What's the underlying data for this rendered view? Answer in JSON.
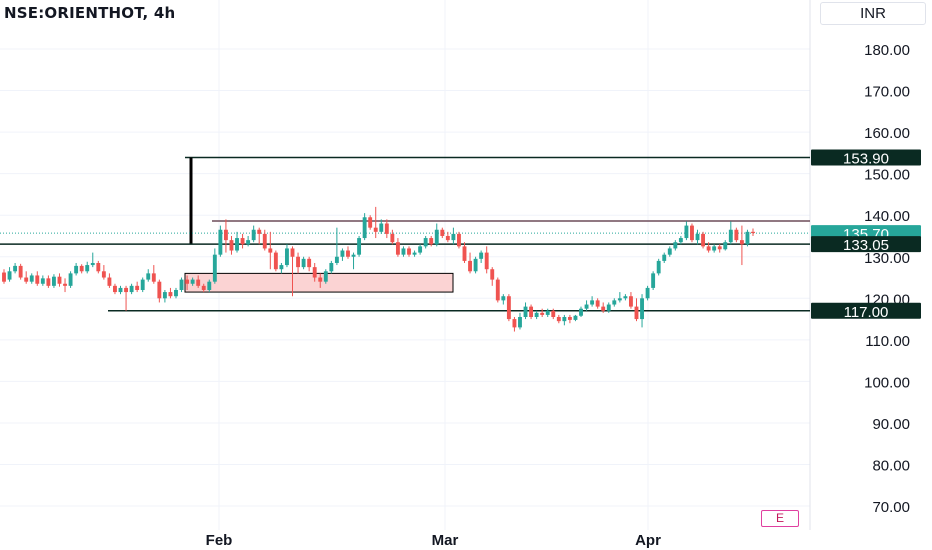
{
  "header": {
    "symbol": "NSE:ORIENTHOT, 4h",
    "currency": "INR"
  },
  "e_button": "E",
  "colors": {
    "up": "#26a69a",
    "down": "#ef5350",
    "level": "#0a2a22",
    "last": "#26a69a",
    "box_fill": "#fbd3d3"
  },
  "chart_data": {
    "type": "candlestick",
    "ylim": [
      65,
      190
    ],
    "y_ticks": [
      "180.00",
      "170.00",
      "160.00",
      "150.00",
      "140.00",
      "130.00",
      "120.00",
      "110.00",
      "100.00",
      "90.00",
      "80.00",
      "70.00"
    ],
    "x_labels": [
      "Feb",
      "Mar",
      "Apr"
    ],
    "levels": [
      {
        "label": "153.90",
        "value": 153.9
      },
      {
        "label": "133.05",
        "value": 133.05
      },
      {
        "label": "117.00",
        "value": 117.0
      }
    ],
    "resistance": {
      "value": 138.6
    },
    "last_price": {
      "label": "135.70",
      "value": 135.7
    },
    "series": [
      {
        "o": 126.2,
        "h": 127.0,
        "c": 124.0,
        "l": 123.5
      },
      {
        "o": 124.5,
        "h": 127.5,
        "c": 126.5,
        "l": 124.0
      },
      {
        "o": 126.5,
        "h": 128.5,
        "c": 127.8,
        "l": 126.0
      },
      {
        "o": 127.8,
        "h": 128.3,
        "c": 125.0,
        "l": 124.5
      },
      {
        "o": 125.0,
        "h": 126.5,
        "c": 124.0,
        "l": 123.5
      },
      {
        "o": 124.0,
        "h": 126.0,
        "c": 125.5,
        "l": 123.5
      },
      {
        "o": 125.5,
        "h": 126.5,
        "c": 123.5,
        "l": 123.0
      },
      {
        "o": 123.5,
        "h": 125.5,
        "c": 124.8,
        "l": 123.0
      },
      {
        "o": 124.8,
        "h": 125.5,
        "c": 123.0,
        "l": 122.5
      },
      {
        "o": 123.0,
        "h": 125.8,
        "c": 125.2,
        "l": 122.5
      },
      {
        "o": 125.2,
        "h": 126.0,
        "c": 123.5,
        "l": 122.8
      },
      {
        "o": 123.5,
        "h": 124.8,
        "c": 123.0,
        "l": 121.5
      },
      {
        "o": 123.0,
        "h": 126.5,
        "c": 126.0,
        "l": 122.5
      },
      {
        "o": 126.0,
        "h": 128.5,
        "c": 127.8,
        "l": 125.5
      },
      {
        "o": 127.8,
        "h": 128.2,
        "c": 126.5,
        "l": 126.0
      },
      {
        "o": 126.5,
        "h": 128.8,
        "c": 128.0,
        "l": 126.0
      },
      {
        "o": 128.0,
        "h": 131.0,
        "c": 128.5,
        "l": 127.5
      },
      {
        "o": 128.5,
        "h": 129.0,
        "c": 126.5,
        "l": 126.0
      },
      {
        "o": 126.5,
        "h": 128.0,
        "c": 125.0,
        "l": 124.5
      },
      {
        "o": 125.0,
        "h": 126.0,
        "c": 123.0,
        "l": 122.5
      },
      {
        "o": 123.0,
        "h": 123.5,
        "c": 121.5,
        "l": 121.0
      },
      {
        "o": 121.5,
        "h": 123.0,
        "c": 122.5,
        "l": 121.0
      },
      {
        "o": 122.5,
        "h": 123.0,
        "c": 121.5,
        "l": 117.0
      },
      {
        "o": 121.5,
        "h": 123.5,
        "c": 123.0,
        "l": 121.0
      },
      {
        "o": 123.0,
        "h": 124.0,
        "c": 122.0,
        "l": 121.5
      },
      {
        "o": 122.0,
        "h": 125.0,
        "c": 124.5,
        "l": 121.5
      },
      {
        "o": 124.5,
        "h": 127.0,
        "c": 126.0,
        "l": 124.0
      },
      {
        "o": 126.0,
        "h": 128.0,
        "c": 124.0,
        "l": 123.5
      },
      {
        "o": 124.0,
        "h": 124.5,
        "c": 120.0,
        "l": 119.0
      },
      {
        "o": 120.0,
        "h": 122.0,
        "c": 121.5,
        "l": 119.0
      },
      {
        "o": 121.5,
        "h": 122.5,
        "c": 120.5,
        "l": 120.0
      },
      {
        "o": 120.5,
        "h": 122.5,
        "c": 122.0,
        "l": 120.0
      },
      {
        "o": 122.0,
        "h": 125.0,
        "c": 124.5,
        "l": 121.5
      },
      {
        "o": 124.5,
        "h": 125.5,
        "c": 123.5,
        "l": 122.0
      },
      {
        "o": 123.5,
        "h": 125.0,
        "c": 124.5,
        "l": 123.0
      },
      {
        "o": 124.5,
        "h": 125.5,
        "c": 123.0,
        "l": 122.5
      },
      {
        "o": 123.0,
        "h": 123.5,
        "c": 122.0,
        "l": 121.5
      },
      {
        "o": 122.0,
        "h": 124.5,
        "c": 124.0,
        "l": 121.5
      },
      {
        "o": 124.0,
        "h": 132.0,
        "c": 130.5,
        "l": 123.5
      },
      {
        "o": 130.5,
        "h": 137.5,
        "c": 136.5,
        "l": 130.0
      },
      {
        "o": 136.5,
        "h": 139.0,
        "c": 134.0,
        "l": 131.0
      },
      {
        "o": 134.0,
        "h": 135.0,
        "c": 131.5,
        "l": 130.5
      },
      {
        "o": 131.5,
        "h": 136.0,
        "c": 134.5,
        "l": 131.0
      },
      {
        "o": 134.5,
        "h": 135.5,
        "c": 133.0,
        "l": 132.0
      },
      {
        "o": 133.0,
        "h": 135.0,
        "c": 134.0,
        "l": 132.5
      },
      {
        "o": 134.0,
        "h": 137.5,
        "c": 136.5,
        "l": 133.5
      },
      {
        "o": 136.5,
        "h": 137.0,
        "c": 135.5,
        "l": 133.0
      },
      {
        "o": 135.5,
        "h": 136.5,
        "c": 132.0,
        "l": 131.5
      },
      {
        "o": 132.0,
        "h": 136.0,
        "c": 131.0,
        "l": 127.0
      },
      {
        "o": 131.0,
        "h": 131.5,
        "c": 127.0,
        "l": 126.5
      },
      {
        "o": 127.0,
        "h": 128.5,
        "c": 128.0,
        "l": 126.0
      },
      {
        "o": 128.0,
        "h": 133.0,
        "c": 132.0,
        "l": 127.5
      },
      {
        "o": 132.0,
        "h": 132.5,
        "c": 130.0,
        "l": 120.5
      },
      {
        "o": 130.0,
        "h": 131.0,
        "c": 127.5,
        "l": 126.0
      },
      {
        "o": 127.5,
        "h": 130.0,
        "c": 129.5,
        "l": 127.0
      },
      {
        "o": 129.5,
        "h": 130.0,
        "c": 127.5,
        "l": 126.5
      },
      {
        "o": 127.5,
        "h": 128.5,
        "c": 125.0,
        "l": 124.0
      },
      {
        "o": 125.0,
        "h": 126.0,
        "c": 124.0,
        "l": 122.5
      },
      {
        "o": 124.0,
        "h": 127.0,
        "c": 126.5,
        "l": 123.5
      },
      {
        "o": 126.5,
        "h": 129.0,
        "c": 128.5,
        "l": 126.0
      },
      {
        "o": 128.5,
        "h": 137.0,
        "c": 130.0,
        "l": 128.0
      },
      {
        "o": 130.0,
        "h": 132.0,
        "c": 131.5,
        "l": 129.0
      },
      {
        "o": 131.5,
        "h": 132.5,
        "c": 130.0,
        "l": 129.5
      },
      {
        "o": 130.0,
        "h": 131.0,
        "c": 130.5,
        "l": 127.0
      },
      {
        "o": 130.5,
        "h": 135.0,
        "c": 134.5,
        "l": 130.0
      },
      {
        "o": 134.5,
        "h": 140.5,
        "c": 139.5,
        "l": 134.0
      },
      {
        "o": 139.5,
        "h": 140.0,
        "c": 137.0,
        "l": 136.5
      },
      {
        "o": 137.0,
        "h": 142.0,
        "c": 136.0,
        "l": 134.5
      },
      {
        "o": 136.0,
        "h": 139.0,
        "c": 138.0,
        "l": 135.5
      },
      {
        "o": 138.0,
        "h": 139.0,
        "c": 135.5,
        "l": 134.5
      },
      {
        "o": 135.5,
        "h": 136.5,
        "c": 133.5,
        "l": 133.0
      },
      {
        "o": 133.5,
        "h": 134.5,
        "c": 130.5,
        "l": 130.0
      },
      {
        "o": 130.5,
        "h": 132.5,
        "c": 132.0,
        "l": 130.0
      },
      {
        "o": 132.0,
        "h": 132.5,
        "c": 130.5,
        "l": 130.0
      },
      {
        "o": 130.5,
        "h": 131.5,
        "c": 131.0,
        "l": 130.0
      },
      {
        "o": 131.0,
        "h": 133.0,
        "c": 132.5,
        "l": 130.5
      },
      {
        "o": 132.5,
        "h": 135.0,
        "c": 134.5,
        "l": 132.0
      },
      {
        "o": 134.5,
        "h": 135.0,
        "c": 133.0,
        "l": 132.5
      },
      {
        "o": 133.0,
        "h": 138.0,
        "c": 136.5,
        "l": 132.5
      },
      {
        "o": 136.5,
        "h": 137.0,
        "c": 135.0,
        "l": 134.5
      },
      {
        "o": 135.0,
        "h": 136.0,
        "c": 134.0,
        "l": 133.5
      },
      {
        "o": 134.0,
        "h": 137.0,
        "c": 135.5,
        "l": 133.0
      },
      {
        "o": 135.5,
        "h": 136.0,
        "c": 132.5,
        "l": 132.0
      },
      {
        "o": 132.5,
        "h": 133.5,
        "c": 129.0,
        "l": 128.5
      },
      {
        "o": 129.0,
        "h": 131.0,
        "c": 126.5,
        "l": 126.0
      },
      {
        "o": 126.5,
        "h": 130.0,
        "c": 129.5,
        "l": 126.0
      },
      {
        "o": 129.5,
        "h": 131.5,
        "c": 131.0,
        "l": 128.5
      },
      {
        "o": 131.0,
        "h": 132.5,
        "c": 127.0,
        "l": 126.0
      },
      {
        "o": 127.0,
        "h": 127.5,
        "c": 124.5,
        "l": 123.0
      },
      {
        "o": 124.5,
        "h": 125.0,
        "c": 119.5,
        "l": 119.0
      },
      {
        "o": 119.5,
        "h": 121.0,
        "c": 120.5,
        "l": 118.5
      },
      {
        "o": 120.5,
        "h": 121.0,
        "c": 115.0,
        "l": 114.5
      },
      {
        "o": 115.0,
        "h": 115.5,
        "c": 113.0,
        "l": 112.0
      },
      {
        "o": 113.0,
        "h": 116.5,
        "c": 115.5,
        "l": 112.5
      },
      {
        "o": 115.5,
        "h": 119.0,
        "c": 118.0,
        "l": 115.0
      },
      {
        "o": 118.0,
        "h": 118.5,
        "c": 115.5,
        "l": 115.0
      },
      {
        "o": 115.5,
        "h": 117.0,
        "c": 116.5,
        "l": 115.0
      },
      {
        "o": 116.5,
        "h": 117.5,
        "c": 116.0,
        "l": 115.5
      },
      {
        "o": 116.0,
        "h": 117.5,
        "c": 117.0,
        "l": 115.5
      },
      {
        "o": 117.0,
        "h": 117.5,
        "c": 115.5,
        "l": 115.0
      },
      {
        "o": 115.5,
        "h": 116.0,
        "c": 114.5,
        "l": 114.0
      },
      {
        "o": 114.5,
        "h": 116.0,
        "c": 115.5,
        "l": 113.5
      },
      {
        "o": 115.5,
        "h": 116.0,
        "c": 114.8,
        "l": 114.0
      },
      {
        "o": 114.8,
        "h": 116.0,
        "c": 115.8,
        "l": 114.5
      },
      {
        "o": 115.8,
        "h": 118.0,
        "c": 117.5,
        "l": 115.5
      },
      {
        "o": 117.5,
        "h": 119.5,
        "c": 118.5,
        "l": 117.0
      },
      {
        "o": 118.5,
        "h": 120.5,
        "c": 119.5,
        "l": 118.0
      },
      {
        "o": 119.5,
        "h": 120.0,
        "c": 118.0,
        "l": 117.5
      },
      {
        "o": 118.0,
        "h": 119.0,
        "c": 117.0,
        "l": 116.5
      },
      {
        "o": 117.0,
        "h": 119.0,
        "c": 118.5,
        "l": 116.5
      },
      {
        "o": 118.5,
        "h": 120.0,
        "c": 119.5,
        "l": 118.0
      },
      {
        "o": 119.5,
        "h": 121.5,
        "c": 120.0,
        "l": 119.0
      },
      {
        "o": 120.0,
        "h": 121.0,
        "c": 120.5,
        "l": 119.5
      },
      {
        "o": 120.5,
        "h": 121.5,
        "c": 118.0,
        "l": 117.5
      },
      {
        "o": 118.0,
        "h": 120.0,
        "c": 115.0,
        "l": 114.5
      },
      {
        "o": 115.0,
        "h": 121.0,
        "c": 120.0,
        "l": 113.0
      },
      {
        "o": 120.0,
        "h": 123.0,
        "c": 122.5,
        "l": 119.5
      },
      {
        "o": 122.5,
        "h": 126.5,
        "c": 126.0,
        "l": 122.0
      },
      {
        "o": 126.0,
        "h": 129.5,
        "c": 129.0,
        "l": 125.5
      },
      {
        "o": 129.0,
        "h": 131.0,
        "c": 130.5,
        "l": 128.5
      },
      {
        "o": 130.5,
        "h": 132.5,
        "c": 132.0,
        "l": 130.0
      },
      {
        "o": 132.0,
        "h": 134.0,
        "c": 133.5,
        "l": 131.5
      },
      {
        "o": 133.5,
        "h": 135.0,
        "c": 134.5,
        "l": 133.0
      },
      {
        "o": 134.5,
        "h": 138.5,
        "c": 137.5,
        "l": 134.0
      },
      {
        "o": 137.5,
        "h": 138.0,
        "c": 134.0,
        "l": 133.5
      },
      {
        "o": 134.0,
        "h": 136.5,
        "c": 135.5,
        "l": 133.0
      },
      {
        "o": 135.5,
        "h": 136.0,
        "c": 132.5,
        "l": 132.0
      },
      {
        "o": 132.5,
        "h": 133.5,
        "c": 131.5,
        "l": 131.0
      },
      {
        "o": 131.5,
        "h": 133.0,
        "c": 132.5,
        "l": 131.0
      },
      {
        "o": 132.5,
        "h": 133.0,
        "c": 131.8,
        "l": 131.0
      },
      {
        "o": 131.8,
        "h": 134.0,
        "c": 133.5,
        "l": 131.5
      },
      {
        "o": 133.5,
        "h": 138.5,
        "c": 136.5,
        "l": 133.0
      },
      {
        "o": 136.5,
        "h": 137.0,
        "c": 134.0,
        "l": 133.5
      },
      {
        "o": 134.0,
        "h": 137.5,
        "c": 133.0,
        "l": 128.0
      },
      {
        "o": 133.0,
        "h": 136.5,
        "c": 136.0,
        "l": 132.5
      },
      {
        "o": 136.0,
        "h": 136.8,
        "c": 135.7,
        "l": 135.0
      }
    ]
  }
}
